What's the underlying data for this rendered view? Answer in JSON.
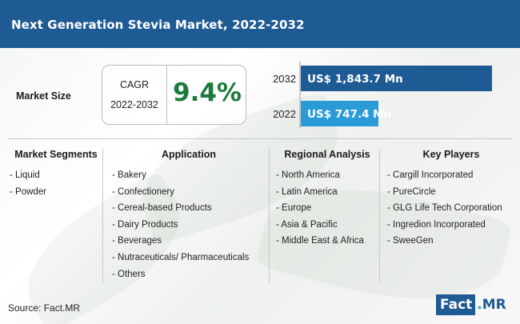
{
  "header": {
    "title": "Next Generation Stevia Market, 2022-2032"
  },
  "market_size": {
    "label": "Market Size",
    "cagr_label": "CAGR",
    "cagr_period": "2022-2032",
    "cagr_value": "9.4%"
  },
  "colors": {
    "header_bg": "#1e5a94",
    "bar_2032": "#1e5a94",
    "bar_2022": "#2a9bd7",
    "cagr_value": "#1c7a3c"
  },
  "chart_data": {
    "type": "bar",
    "orientation": "horizontal",
    "categories": [
      "2032",
      "2022"
    ],
    "values": [
      1843.7,
      747.4
    ],
    "unit": "US$ Mn",
    "value_labels": [
      "US$ 1,843.7 Mn",
      "US$ 747.4 Mn"
    ],
    "title": "",
    "xlabel": "",
    "ylabel": "",
    "grid": false
  },
  "segments": [
    {
      "heading": "Market Segments",
      "items": [
        "- Liquid",
        "- Powder"
      ]
    },
    {
      "heading": "Application",
      "items": [
        "- Bakery",
        "- Confectionery",
        "- Cereal-based Products",
        "- Dairy Products",
        "- Beverages",
        "- Nutraceuticals/ Pharmaceuticals",
        "- Others"
      ]
    },
    {
      "heading": "Regional Analysis",
      "items": [
        "- North America",
        "- Latin America",
        "- Europe",
        "- Asia & Pacific",
        "- Middle East & Africa"
      ]
    },
    {
      "heading": "Key Players",
      "items": [
        "- Cargill Incorporated",
        "- PureCircle",
        "- GLG Life Tech Corporation",
        "- Ingredion Incorporated",
        "- SweeGen"
      ]
    }
  ],
  "footer": {
    "source": "Source: Fact.MR",
    "logo_fact": "Fact",
    "logo_dot": ".",
    "logo_mr": "MR"
  }
}
